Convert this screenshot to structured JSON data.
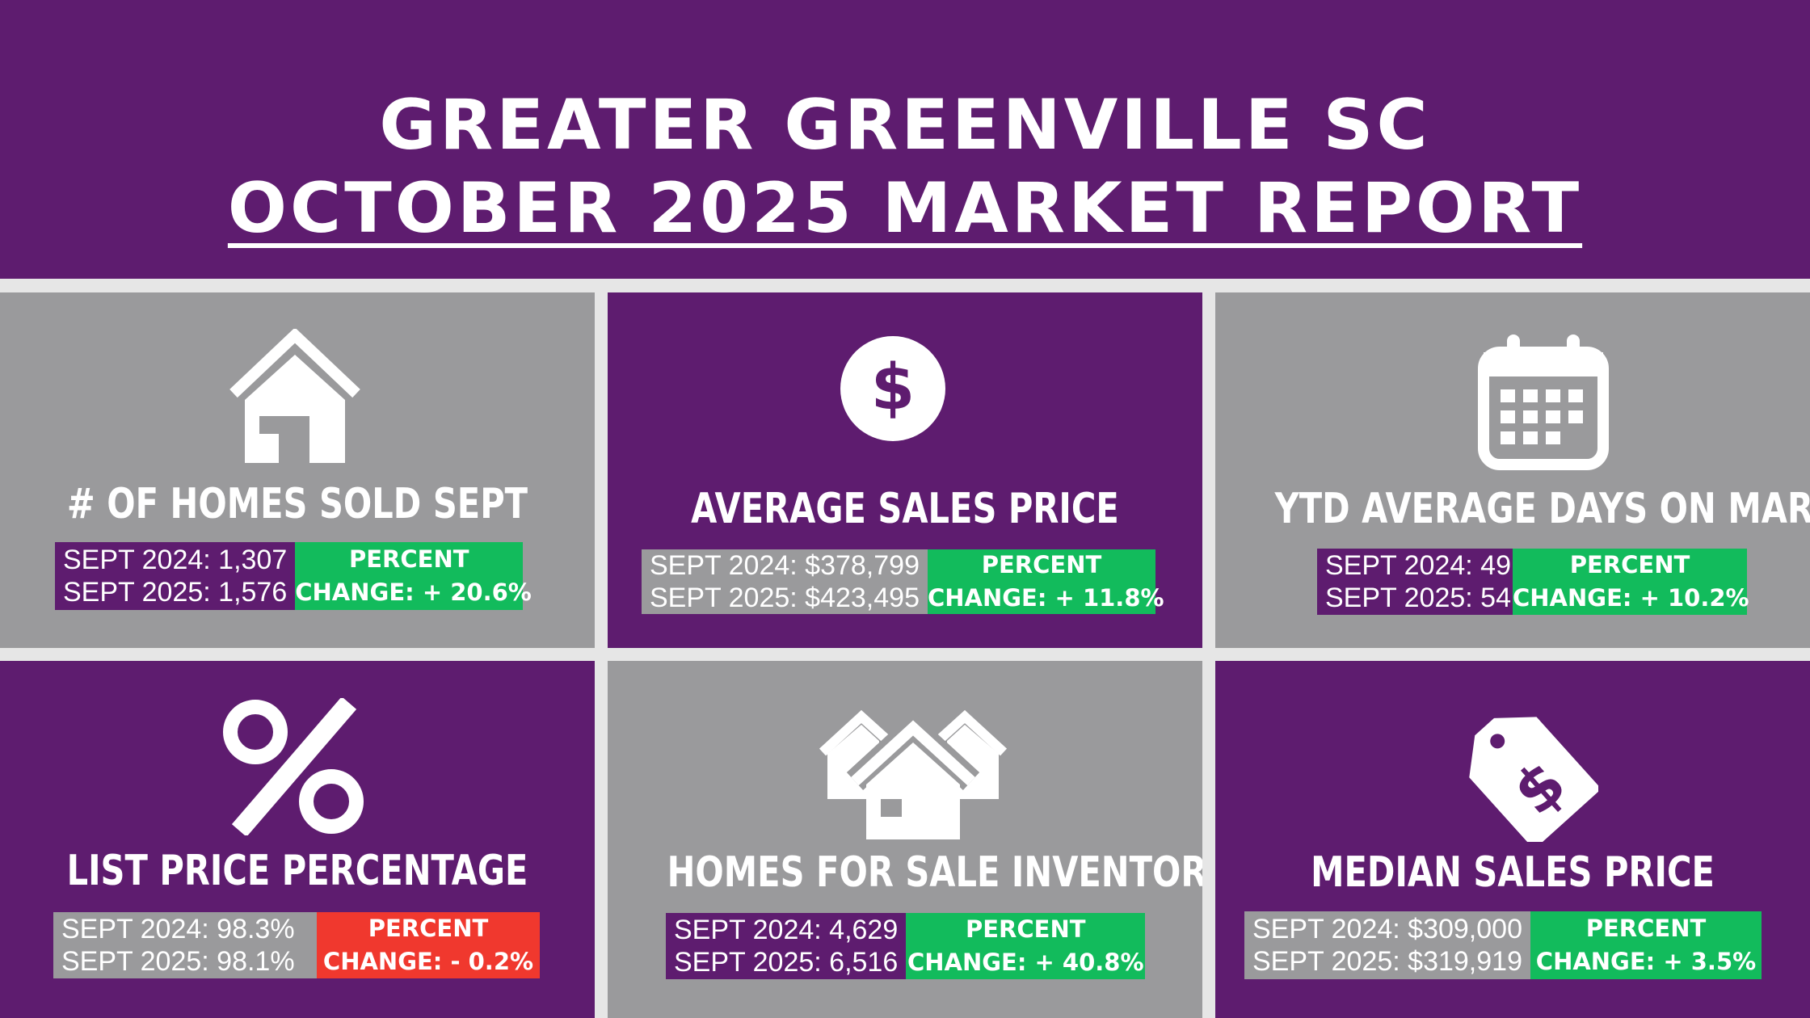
{
  "header": {
    "line1": "GREATER GREENVILLE SC",
    "line2": "OCTOBER 2025 MARKET REPORT"
  },
  "colors": {
    "purple": "#5e1c6f",
    "gray": "#9a9a9c",
    "positive": "#12bb5c",
    "negative": "#f0382e"
  },
  "panels": [
    {
      "icon": "house-icon",
      "title": "# OF HOMES SOLD SEPT",
      "row1": "SEPT 2024: 1,307",
      "row2": "SEPT 2025: 1,576",
      "change_label": "PERCENT",
      "change_value": "CHANGE: + 20.6%"
    },
    {
      "icon": "dollar-circle-icon",
      "title": "AVERAGE SALES PRICE",
      "row1": "SEPT 2024: $378,799",
      "row2": "SEPT 2025: $423,495",
      "change_label": "PERCENT",
      "change_value": "CHANGE: + 11.8%"
    },
    {
      "icon": "calendar-icon",
      "title": "YTD AVERAGE DAYS ON MARKET",
      "row1": "SEPT 2024: 49",
      "row2": "SEPT 2025: 54",
      "change_label": "PERCENT",
      "change_value": "CHANGE: + 10.2%"
    },
    {
      "icon": "percent-icon",
      "title": "LIST PRICE PERCENTAGE",
      "row1": "SEPT 2024: 98.3%",
      "row2": "SEPT 2025: 98.1%",
      "change_label": "PERCENT",
      "change_value": "CHANGE: - 0.2%"
    },
    {
      "icon": "houses-icon",
      "title": "HOMES FOR SALE INVENTORY",
      "row1": "SEPT 2024: 4,629",
      "row2": "SEPT 2025: 6,516",
      "change_label": "PERCENT",
      "change_value": "CHANGE: + 40.8%"
    },
    {
      "icon": "price-tag-icon",
      "title": "MEDIAN SALES PRICE",
      "row1": "SEPT 2024: $309,000",
      "row2": "SEPT 2025: $319,919",
      "change_label": "PERCENT",
      "change_value": "CHANGE:  + 3.5%"
    }
  ]
}
